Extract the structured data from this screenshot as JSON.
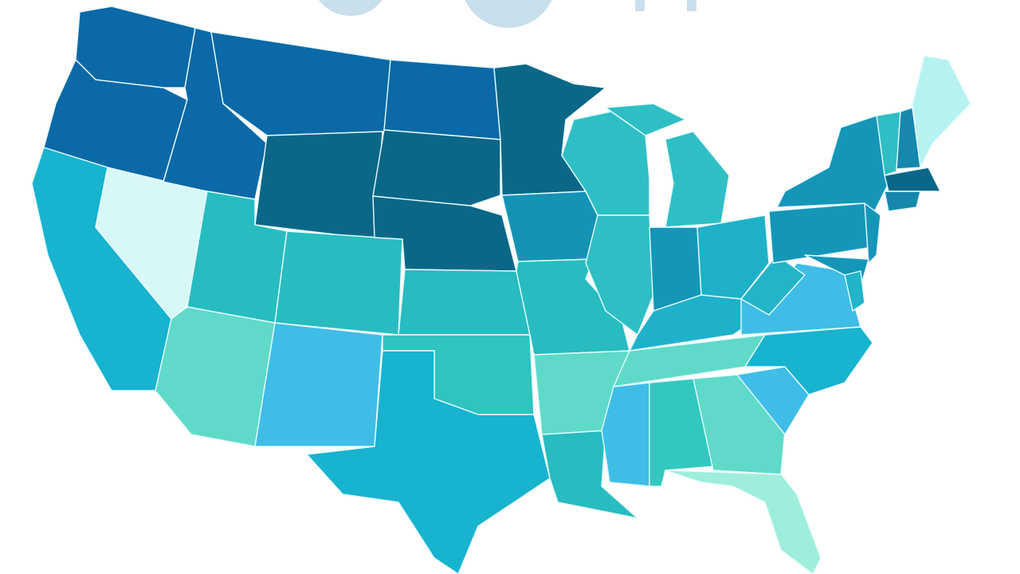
{
  "map": {
    "regions": [
      {
        "color": "#0a69a6"
      },
      {
        "color": "#0a69a6"
      },
      {
        "color": "#17b3cf"
      },
      {
        "color": "#d8f8f8"
      },
      {
        "color": "#0a69a6"
      },
      {
        "color": "#0a69a6"
      },
      {
        "color": "#0b6787"
      },
      {
        "color": "#27bcc0"
      },
      {
        "color": "#27bcc0"
      },
      {
        "color": "#5fdac9"
      },
      {
        "color": "#3fbde6"
      },
      {
        "color": "#0a69a6"
      },
      {
        "color": "#0b6787"
      },
      {
        "color": "#0b6787"
      },
      {
        "color": "#27bcc0"
      },
      {
        "color": "#2fc4bf"
      },
      {
        "color": "#17b3cf"
      },
      {
        "color": "#0b6787"
      },
      {
        "color": "#1593b5"
      },
      {
        "color": "#27bcc0"
      },
      {
        "color": "#5fdac9"
      },
      {
        "color": "#27bcc0"
      },
      {
        "color": "#2ebfc4"
      },
      {
        "color": "#2ebfc4"
      },
      {
        "color": "#2ebfc4"
      },
      {
        "color": "#1596b8"
      },
      {
        "color": "#1fb1c9"
      },
      {
        "color": "#1fb1c9"
      },
      {
        "color": "#5fdac9"
      },
      {
        "color": "#3fbde6"
      },
      {
        "color": "#33c8bf"
      },
      {
        "color": "#5fdac9"
      },
      {
        "color": "#9eeedb"
      },
      {
        "color": "#3fbde6"
      },
      {
        "color": "#17b3cf"
      },
      {
        "color": "#3fbde6"
      },
      {
        "color": "#22b4c8"
      },
      {
        "color": "#1596b8"
      },
      {
        "color": "#1596b8"
      },
      {
        "color": "#1596b8"
      },
      {
        "color": "#1596b8"
      },
      {
        "color": "#2ebfc4"
      },
      {
        "color": "#1687ad"
      },
      {
        "color": "#b6f2f0"
      },
      {
        "color": "#0b6787"
      },
      {
        "color": "#1687ad"
      },
      {
        "color": "#22b4c8"
      }
    ]
  }
}
